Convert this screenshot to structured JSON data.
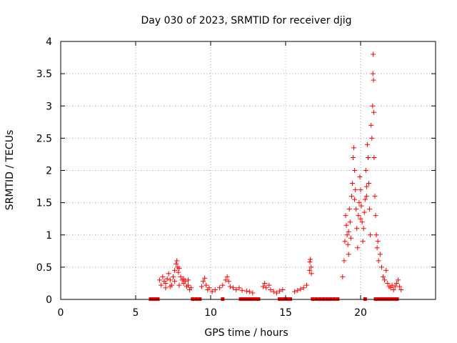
{
  "chart_data": {
    "type": "scatter",
    "title": "Day 030 of 2023, SRMTID for receiver djig",
    "xlabel": "GPS time / hours",
    "ylabel": "SRMTID / TECUs",
    "xlim": [
      0,
      25
    ],
    "ylim": [
      0,
      4
    ],
    "xticks": [
      0,
      5,
      10,
      15,
      20
    ],
    "xtick_labels": [
      "0",
      "5",
      "10",
      "15",
      "20"
    ],
    "yticks": [
      0,
      0.5,
      1,
      1.5,
      2,
      2.5,
      3,
      3.5,
      4
    ],
    "ytick_labels": [
      "0",
      "0.5",
      "1",
      "1.5",
      "2",
      "2.5",
      "3",
      "3.5",
      "4"
    ],
    "grid": true,
    "marker": "plus",
    "series": [
      {
        "name": "SRMTID",
        "color": "#ff0000",
        "points": [
          [
            6.6,
            0.3
          ],
          [
            6.7,
            0.22
          ],
          [
            6.8,
            0.35
          ],
          [
            6.9,
            0.28
          ],
          [
            7.0,
            0.25
          ],
          [
            7.1,
            0.32
          ],
          [
            7.2,
            0.4
          ],
          [
            7.3,
            0.3
          ],
          [
            7.4,
            0.22
          ],
          [
            7.5,
            0.35
          ],
          [
            7.6,
            0.45
          ],
          [
            7.7,
            0.55
          ],
          [
            7.75,
            0.6
          ],
          [
            7.8,
            0.5
          ],
          [
            7.85,
            0.42
          ],
          [
            7.9,
            0.48
          ],
          [
            8.0,
            0.35
          ],
          [
            8.1,
            0.3
          ],
          [
            8.2,
            0.25
          ],
          [
            8.3,
            0.28
          ],
          [
            8.4,
            0.2
          ],
          [
            8.5,
            0.22
          ],
          [
            8.6,
            0.15
          ],
          [
            8.7,
            0.18
          ],
          [
            7.0,
            0.18
          ],
          [
            7.3,
            0.2
          ],
          [
            7.6,
            0.28
          ],
          [
            7.9,
            0.22
          ],
          [
            8.2,
            0.32
          ],
          [
            8.5,
            0.3
          ],
          [
            9.4,
            0.2
          ],
          [
            9.5,
            0.28
          ],
          [
            9.6,
            0.33
          ],
          [
            9.7,
            0.22
          ],
          [
            9.8,
            0.15
          ],
          [
            9.9,
            0.18
          ],
          [
            10.1,
            0.12
          ],
          [
            10.3,
            0.15
          ],
          [
            10.6,
            0.18
          ],
          [
            10.8,
            0.22
          ],
          [
            11.0,
            0.3
          ],
          [
            11.1,
            0.35
          ],
          [
            11.2,
            0.28
          ],
          [
            11.3,
            0.2
          ],
          [
            11.5,
            0.18
          ],
          [
            11.7,
            0.15
          ],
          [
            11.9,
            0.18
          ],
          [
            12.1,
            0.14
          ],
          [
            12.4,
            0.13
          ],
          [
            12.6,
            0.12
          ],
          [
            12.8,
            0.1
          ],
          [
            13.5,
            0.2
          ],
          [
            13.6,
            0.25
          ],
          [
            13.7,
            0.18
          ],
          [
            13.9,
            0.22
          ],
          [
            14.0,
            0.15
          ],
          [
            14.2,
            0.12
          ],
          [
            14.4,
            0.1
          ],
          [
            14.6,
            0.13
          ],
          [
            14.8,
            0.15
          ],
          [
            15.6,
            0.12
          ],
          [
            15.8,
            0.14
          ],
          [
            16.0,
            0.16
          ],
          [
            16.2,
            0.18
          ],
          [
            16.4,
            0.22
          ],
          [
            16.6,
            0.45
          ],
          [
            16.62,
            0.58
          ],
          [
            16.65,
            0.62
          ],
          [
            16.7,
            0.5
          ],
          [
            16.72,
            0.4
          ],
          [
            18.8,
            0.35
          ],
          [
            18.9,
            0.6
          ],
          [
            18.95,
            0.9
          ],
          [
            19.0,
            1.3
          ],
          [
            19.05,
            1.15
          ],
          [
            19.1,
            1.0
          ],
          [
            19.15,
            0.85
          ],
          [
            19.2,
            0.7
          ],
          [
            19.25,
            1.4
          ],
          [
            19.3,
            1.2
          ],
          [
            19.35,
            0.95
          ],
          [
            19.4,
            1.6
          ],
          [
            19.45,
            1.8
          ],
          [
            19.5,
            2.2
          ],
          [
            19.55,
            2.35
          ],
          [
            19.6,
            2.0
          ],
          [
            19.65,
            1.7
          ],
          [
            19.7,
            1.4
          ],
          [
            19.75,
            1.1
          ],
          [
            19.8,
            0.8
          ],
          [
            19.85,
            1.3
          ],
          [
            19.9,
            1.5
          ],
          [
            19.95,
            1.9
          ],
          [
            20.0,
            1.7
          ],
          [
            20.05,
            1.45
          ],
          [
            20.1,
            1.2
          ],
          [
            20.15,
            0.9
          ],
          [
            20.2,
            1.1
          ],
          [
            20.25,
            1.35
          ],
          [
            20.3,
            1.55
          ],
          [
            20.35,
            2.0
          ],
          [
            20.4,
            1.75
          ],
          [
            20.45,
            2.4
          ],
          [
            20.5,
            2.2
          ],
          [
            20.55,
            1.8
          ],
          [
            20.6,
            1.4
          ],
          [
            20.65,
            1.0
          ],
          [
            20.7,
            2.7
          ],
          [
            20.75,
            2.5
          ],
          [
            20.8,
            3.0
          ],
          [
            20.82,
            3.5
          ],
          [
            20.84,
            3.8
          ],
          [
            20.86,
            3.4
          ],
          [
            20.88,
            2.9
          ],
          [
            20.9,
            2.2
          ],
          [
            20.95,
            1.6
          ],
          [
            21.0,
            1.3
          ],
          [
            21.05,
            1.0
          ],
          [
            21.1,
            0.8
          ],
          [
            21.15,
            0.9
          ],
          [
            21.2,
            0.6
          ],
          [
            21.3,
            0.7
          ],
          [
            21.4,
            0.5
          ],
          [
            21.5,
            0.35
          ],
          [
            21.6,
            0.3
          ],
          [
            21.7,
            0.45
          ],
          [
            21.8,
            0.25
          ],
          [
            21.9,
            0.2
          ],
          [
            22.0,
            0.18
          ],
          [
            22.1,
            0.22
          ],
          [
            22.2,
            0.15
          ],
          [
            22.3,
            0.2
          ],
          [
            22.4,
            0.25
          ],
          [
            22.5,
            0.3
          ],
          [
            22.6,
            0.2
          ],
          [
            22.7,
            0.15
          ],
          [
            19.2,
            1.05
          ],
          [
            19.6,
            1.55
          ],
          [
            20.0,
            1.25
          ],
          [
            20.4,
            1.6
          ]
        ]
      }
    ],
    "gaps": [
      {
        "start": 6.0,
        "end": 6.7
      },
      {
        "start": 8.8,
        "end": 9.3
      },
      {
        "start": 10.8,
        "end": 11.0
      },
      {
        "start": 12.0,
        "end": 13.3
      },
      {
        "start": 14.6,
        "end": 15.4
      },
      {
        "start": 16.8,
        "end": 18.6
      },
      {
        "start": 20.3,
        "end": 20.5
      },
      {
        "start": 21.0,
        "end": 22.5
      }
    ]
  }
}
